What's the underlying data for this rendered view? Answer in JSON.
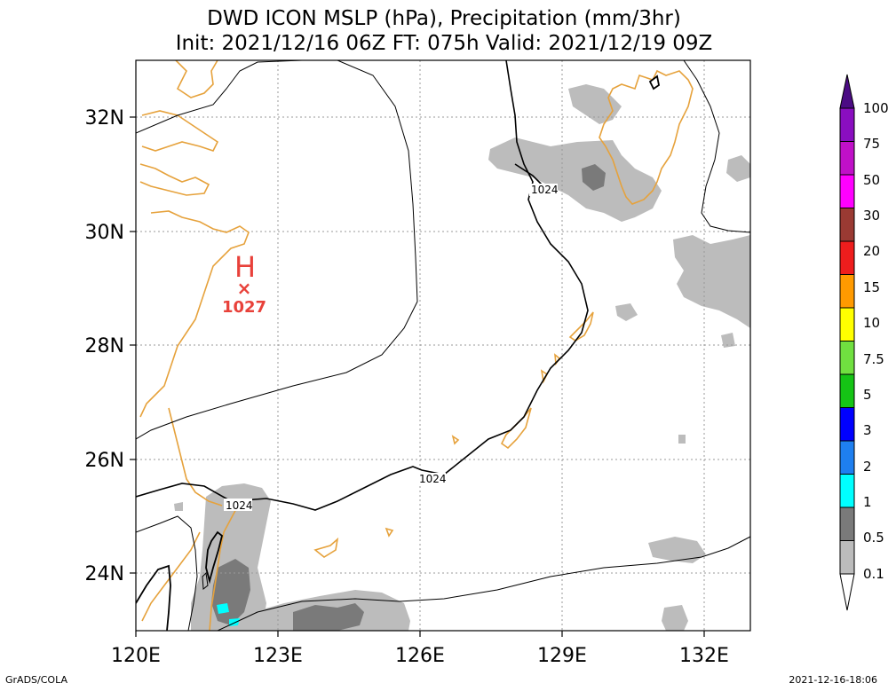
{
  "title_line1": "DWD ICON MSLP (hPa), Precipitation (mm/3hr)",
  "title_line2": "Init: 2021/12/16 06Z  FT: 075h  Valid: 2021/12/19 09Z",
  "map": {
    "lon_range": [
      120,
      133
    ],
    "lat_range": [
      23,
      33
    ],
    "lon_ticks": [
      {
        "value": 120,
        "label": "120E"
      },
      {
        "value": 123,
        "label": "123E"
      },
      {
        "value": 126,
        "label": "126E"
      },
      {
        "value": 129,
        "label": "129E"
      },
      {
        "value": 132,
        "label": "132E"
      }
    ],
    "lat_ticks": [
      {
        "value": 32,
        "label": "32N"
      },
      {
        "value": 30,
        "label": "30N"
      },
      {
        "value": 28,
        "label": "28N"
      },
      {
        "value": 26,
        "label": "26N"
      },
      {
        "value": 24,
        "label": "24N"
      }
    ],
    "grid": true,
    "coastline_color": "#e6a23c",
    "isobar_color": "#000000",
    "isobar_labels": [
      "1024",
      "1024",
      "1024"
    ],
    "pressure_center": {
      "symbol": "H",
      "marker": "×",
      "value": "1027",
      "lon": 122.2,
      "lat": 29.3,
      "color": "#e8413a"
    }
  },
  "colorbar": {
    "labels": [
      "100",
      "75",
      "50",
      "30",
      "20",
      "15",
      "10",
      "7.5",
      "5",
      "3",
      "2",
      "1",
      "0.5",
      "0.1"
    ],
    "colors": [
      "#8a0ec0",
      "#c010c8",
      "#ff00ff",
      "#9a3a33",
      "#ee1d1d",
      "#ff9a00",
      "#ffff00",
      "#70e040",
      "#15c415",
      "#0000ff",
      "#1e7ff0",
      "#00ffff",
      "#7a7a7a",
      "#bcbcbc"
    ],
    "top_triangle_color": "#4b0b84"
  },
  "footer": {
    "left": "GrADS/COLA",
    "right": "2021-12-16-18:06"
  }
}
